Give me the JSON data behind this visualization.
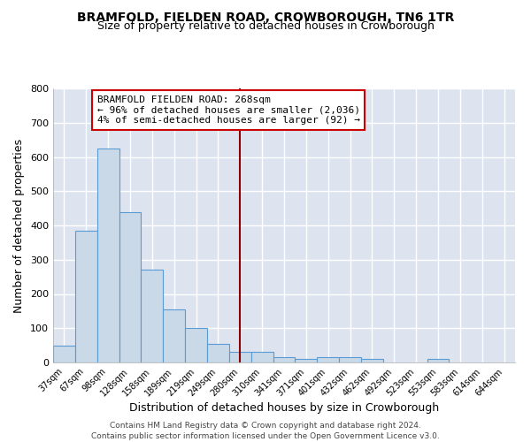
{
  "title": "BRAMFOLD, FIELDEN ROAD, CROWBOROUGH, TN6 1TR",
  "subtitle": "Size of property relative to detached houses in Crowborough",
  "xlabel": "Distribution of detached houses by size in Crowborough",
  "ylabel": "Number of detached properties",
  "categories": [
    "37sqm",
    "67sqm",
    "98sqm",
    "128sqm",
    "158sqm",
    "189sqm",
    "219sqm",
    "249sqm",
    "280sqm",
    "310sqm",
    "341sqm",
    "371sqm",
    "401sqm",
    "432sqm",
    "462sqm",
    "492sqm",
    "523sqm",
    "553sqm",
    "583sqm",
    "614sqm",
    "644sqm"
  ],
  "values": [
    50,
    385,
    625,
    440,
    270,
    155,
    100,
    55,
    30,
    30,
    15,
    10,
    15,
    15,
    10,
    0,
    0,
    10,
    0,
    0,
    0
  ],
  "bar_color": "#c9d9e8",
  "bar_edge_color": "#5b9bd5",
  "vline_x_index": 8,
  "vline_color": "#8b0000",
  "annotation_text": "BRAMFOLD FIELDEN ROAD: 268sqm\n← 96% of detached houses are smaller (2,036)\n4% of semi-detached houses are larger (92) →",
  "annotation_box_color": "#ffffff",
  "annotation_box_edge_color": "#cc0000",
  "ylim": [
    0,
    800
  ],
  "yticks": [
    0,
    100,
    200,
    300,
    400,
    500,
    600,
    700,
    800
  ],
  "bg_color": "#dde4f0",
  "grid_color": "#ffffff",
  "footer_line1": "Contains HM Land Registry data © Crown copyright and database right 2024.",
  "footer_line2": "Contains public sector information licensed under the Open Government Licence v3.0.",
  "title_fontsize": 10,
  "subtitle_fontsize": 9,
  "tick_fontsize": 7,
  "label_fontsize": 9
}
